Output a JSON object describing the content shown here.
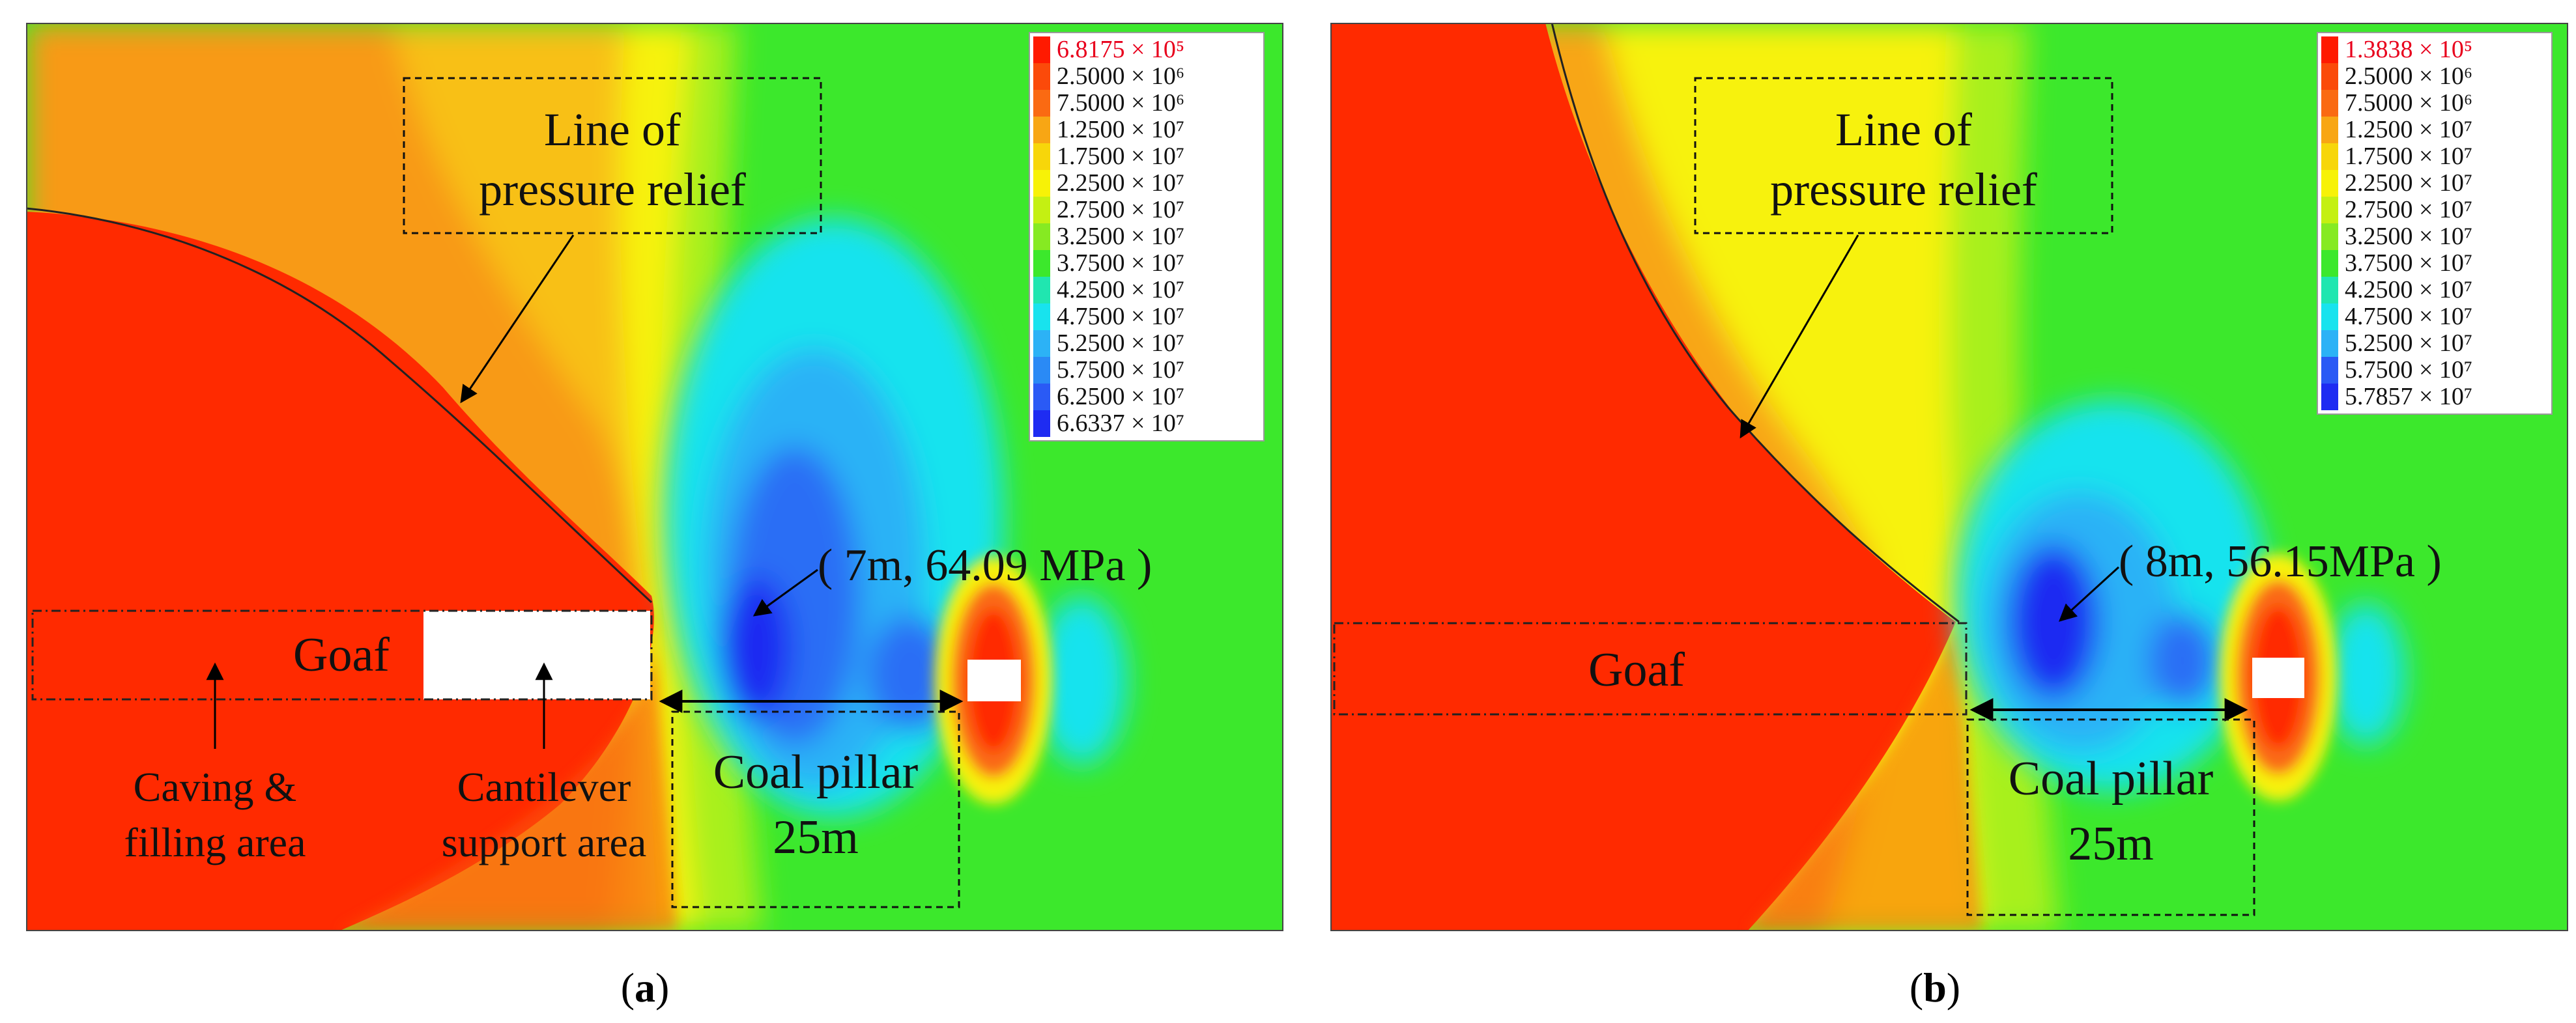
{
  "colors": {
    "red": "#ff2a00",
    "orange": "#fa6a12",
    "amber": "#f8a614",
    "yellow": "#f7f207",
    "lime": "#a8f01a",
    "green": "#3ce82c",
    "cyan": "#18e3ee",
    "sky": "#2cb2f6",
    "blue": "#2a6ef5",
    "deep_blue": "#1e2cf2",
    "legend_red_text": "#e8001c"
  },
  "panels": [
    {
      "id": "a",
      "caption_open": "(",
      "caption_letter": "a",
      "caption_close": ")",
      "legend": [
        {
          "text": "6.8175 × 10⁵",
          "color": "#ff1a00",
          "highlight": true
        },
        {
          "text": "2.5000 × 10⁶",
          "color": "#fb4a0a"
        },
        {
          "text": "7.5000 × 10⁶",
          "color": "#fa6a12"
        },
        {
          "text": "1.2500 × 10⁷",
          "color": "#f8a614"
        },
        {
          "text": "1.7500 × 10⁷",
          "color": "#f7d60a"
        },
        {
          "text": "2.2500 × 10⁷",
          "color": "#f7f207"
        },
        {
          "text": "2.7500 × 10⁷",
          "color": "#c4f012"
        },
        {
          "text": "3.2500 × 10⁷",
          "color": "#86ea22"
        },
        {
          "text": "3.7500 × 10⁷",
          "color": "#3ce82c"
        },
        {
          "text": "4.2500 × 10⁷",
          "color": "#20e6b0"
        },
        {
          "text": "4.7500 × 10⁷",
          "color": "#18e3ee"
        },
        {
          "text": "5.2500 × 10⁷",
          "color": "#2cb2f6"
        },
        {
          "text": "5.7500 × 10⁷",
          "color": "#2a8af5"
        },
        {
          "text": "6.2500 × 10⁷",
          "color": "#2a5af5"
        },
        {
          "text": "6.6337 × 10⁷",
          "color": "#1e2cf2"
        }
      ],
      "labels": {
        "pressure_line": [
          "Line of",
          "pressure relief"
        ],
        "peak": "( 7m, 64.09 MPa )",
        "goaf": "Goaf",
        "pillar": [
          "Coal pillar",
          "25m"
        ],
        "caving": [
          "Caving &",
          "filling area"
        ],
        "cantilever": [
          "Cantilever",
          "support area"
        ]
      }
    },
    {
      "id": "b",
      "caption_open": "(",
      "caption_letter": "b",
      "caption_close": ")",
      "legend": [
        {
          "text": "1.3838 × 10⁵",
          "color": "#ff1a00",
          "highlight": true
        },
        {
          "text": "2.5000 × 10⁶",
          "color": "#fb4a0a"
        },
        {
          "text": "7.5000 × 10⁶",
          "color": "#fa6a12"
        },
        {
          "text": "1.2500 × 10⁷",
          "color": "#f8a614"
        },
        {
          "text": "1.7500 × 10⁷",
          "color": "#f7d60a"
        },
        {
          "text": "2.2500 × 10⁷",
          "color": "#f7f207"
        },
        {
          "text": "2.7500 × 10⁷",
          "color": "#c4f012"
        },
        {
          "text": "3.2500 × 10⁷",
          "color": "#86ea22"
        },
        {
          "text": "3.7500 × 10⁷",
          "color": "#3ce82c"
        },
        {
          "text": "4.2500 × 10⁷",
          "color": "#20e6b0"
        },
        {
          "text": "4.7500 × 10⁷",
          "color": "#18e3ee"
        },
        {
          "text": "5.2500 × 10⁷",
          "color": "#2cb2f6"
        },
        {
          "text": "5.7500 × 10⁷",
          "color": "#2a5af5"
        },
        {
          "text": "5.7857 × 10⁷",
          "color": "#1e2cf2"
        }
      ],
      "labels": {
        "pressure_line": [
          "Line of",
          "pressure relief"
        ],
        "peak": "( 8m, 56.15MPa )",
        "goaf": "Goaf",
        "pillar": [
          "Coal pillar",
          "25m"
        ]
      }
    }
  ]
}
